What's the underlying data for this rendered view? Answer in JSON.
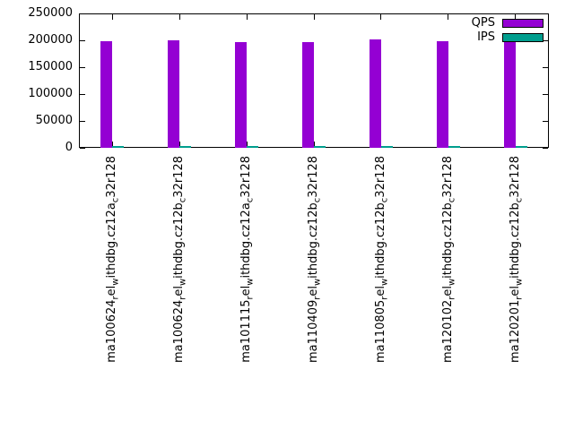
{
  "chart_data": {
    "type": "bar",
    "categories": [
      "ma100624_rel_withdbg.cz12a_c32r128",
      "ma100624_rel_withdbg.cz12b_c32r128",
      "ma101115_rel_withdbg.cz12a_c32r128",
      "ma110409_rel_withdbg.cz12b_c32r128",
      "ma110805_rel_withdbg.cz12b_c32r128",
      "ma120102_rel_withdbg.cz12b_c32r128",
      "ma120201_rel_withdbg.cz12b_c32r128"
    ],
    "series": [
      {
        "name": "QPS",
        "color": "#9400d3",
        "values": [
          198000,
          200500,
          196500,
          196000,
          202000,
          198000,
          199500
        ]
      },
      {
        "name": "IPS",
        "color": "#009e8e",
        "values": [
          2000,
          2000,
          2000,
          2500,
          2500,
          2000,
          2500
        ]
      }
    ],
    "title": "",
    "xlabel": "",
    "ylabel": "",
    "ylim": [
      0,
      250000
    ],
    "yticks": [
      0,
      50000,
      100000,
      150000,
      200000,
      250000
    ],
    "grid": false,
    "legend_position": "top-right"
  }
}
